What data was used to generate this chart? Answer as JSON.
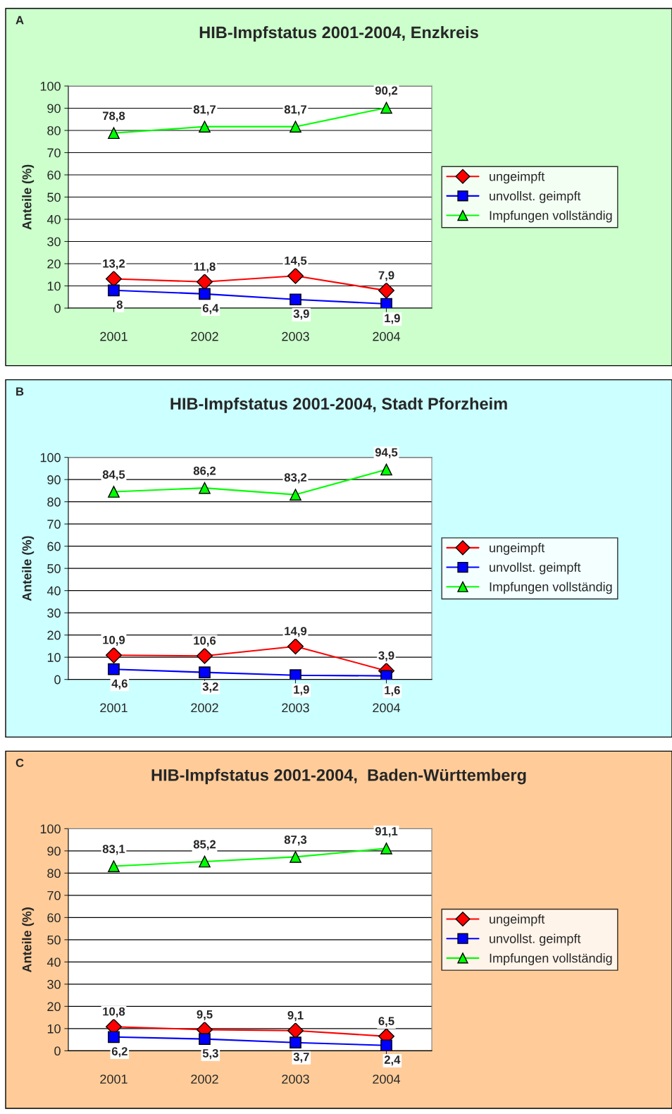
{
  "chart_data": [
    {
      "type": "line",
      "title": "HIB-Impfstatus 2001-2004, Enzkreis",
      "ylabel": "Anteile (%)",
      "annotations": [
        "A"
      ],
      "categories": [
        "2001",
        "2002",
        "2003",
        "2004"
      ],
      "ylim": [
        0,
        100
      ],
      "yticks": [
        0,
        10,
        20,
        30,
        40,
        50,
        60,
        70,
        80,
        90,
        100
      ],
      "grid": "y",
      "legend": "right",
      "series": [
        {
          "name": "ungeimpft",
          "color": "#ff0000",
          "marker": "diamond",
          "values": [
            13.2,
            11.8,
            14.5,
            7.9
          ],
          "value_labels": [
            "13,2",
            "11,8",
            "14,5",
            "7,9"
          ]
        },
        {
          "name": "unvollst. geimpft",
          "color": "#0000ff",
          "marker": "square",
          "values": [
            8,
            6.4,
            3.9,
            1.9
          ],
          "value_labels": [
            "8",
            "6,4",
            "3,9",
            "1,9"
          ]
        },
        {
          "name": "Impfungen vollständig",
          "color": "#00ff00",
          "marker": "triangle",
          "values": [
            78.8,
            81.7,
            81.7,
            90.2
          ],
          "value_labels": [
            "78,8",
            "81,7",
            "81,7",
            "90,2"
          ]
        }
      ]
    },
    {
      "type": "line",
      "title": "HIB-Impfstatus 2001-2004, Stadt Pforzheim",
      "ylabel": "Anteile (%)",
      "annotations": [
        "B"
      ],
      "categories": [
        "2001",
        "2002",
        "2003",
        "2004"
      ],
      "ylim": [
        0,
        100
      ],
      "yticks": [
        0,
        10,
        20,
        30,
        40,
        50,
        60,
        70,
        80,
        90,
        100
      ],
      "grid": "y",
      "legend": "right",
      "series": [
        {
          "name": "ungeimpft",
          "color": "#ff0000",
          "marker": "diamond",
          "values": [
            10.9,
            10.6,
            14.9,
            3.9
          ],
          "value_labels": [
            "10,9",
            "10,6",
            "14,9",
            "3,9"
          ]
        },
        {
          "name": "unvollst. geimpft",
          "color": "#0000ff",
          "marker": "square",
          "values": [
            4.6,
            3.2,
            1.9,
            1.6
          ],
          "value_labels": [
            "4,6",
            "3,2",
            "1,9",
            "1,6"
          ]
        },
        {
          "name": "Impfungen vollständig",
          "color": "#00ff00",
          "marker": "triangle",
          "values": [
            84.5,
            86.2,
            83.2,
            94.5
          ],
          "value_labels": [
            "84,5",
            "86,2",
            "83,2",
            "94,5"
          ]
        }
      ]
    },
    {
      "type": "line",
      "title": "HIB-Impfstatus 2001-2004,  Baden-Württemberg",
      "ylabel": "Anteile (%)",
      "annotations": [
        "C"
      ],
      "categories": [
        "2001",
        "2002",
        "2003",
        "2004"
      ],
      "ylim": [
        0,
        100
      ],
      "yticks": [
        0,
        10,
        20,
        30,
        40,
        50,
        60,
        70,
        80,
        90,
        100
      ],
      "grid": "y",
      "legend": "right",
      "series": [
        {
          "name": "ungeimpft",
          "color": "#ff0000",
          "marker": "diamond",
          "values": [
            10.8,
            9.5,
            9.1,
            6.5
          ],
          "value_labels": [
            "10,8",
            "9,5",
            "9,1",
            "6,5"
          ]
        },
        {
          "name": "unvollst. geimpft",
          "color": "#0000ff",
          "marker": "square",
          "values": [
            6.2,
            5.3,
            3.7,
            2.4
          ],
          "value_labels": [
            "6,2",
            "5,3",
            "3,7",
            "2,4"
          ]
        },
        {
          "name": "Impfungen vollständig",
          "color": "#00ff00",
          "marker": "triangle",
          "values": [
            83.1,
            85.2,
            87.3,
            91.1
          ],
          "value_labels": [
            "83,1",
            "85,2",
            "87,3",
            "91,1"
          ]
        }
      ]
    }
  ]
}
